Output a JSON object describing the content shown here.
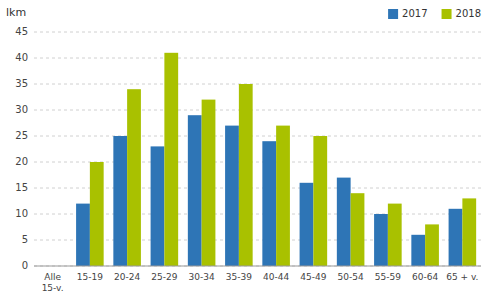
{
  "chart_data": {
    "type": "bar",
    "ylabel": "lkm",
    "categories": [
      "Alle\n15-v.",
      "15-19",
      "20-24",
      "25-29",
      "30-34",
      "35-39",
      "40-44",
      "45-49",
      "50-54",
      "55-59",
      "60-64",
      "65 + v."
    ],
    "series": [
      {
        "name": "2017",
        "color": "#2e75b6",
        "values": [
          0,
          12,
          25,
          23,
          29,
          27,
          24,
          16,
          17,
          10,
          6,
          11
        ]
      },
      {
        "name": "2018",
        "color": "#a9c100",
        "values": [
          0,
          20,
          34,
          41,
          32,
          35,
          27,
          25,
          14,
          12,
          8,
          13
        ]
      }
    ],
    "ylim": [
      0,
      45
    ],
    "yticks": [
      0,
      5,
      10,
      15,
      20,
      25,
      30,
      35,
      40,
      45
    ],
    "grid": true,
    "legend": "upper right"
  }
}
